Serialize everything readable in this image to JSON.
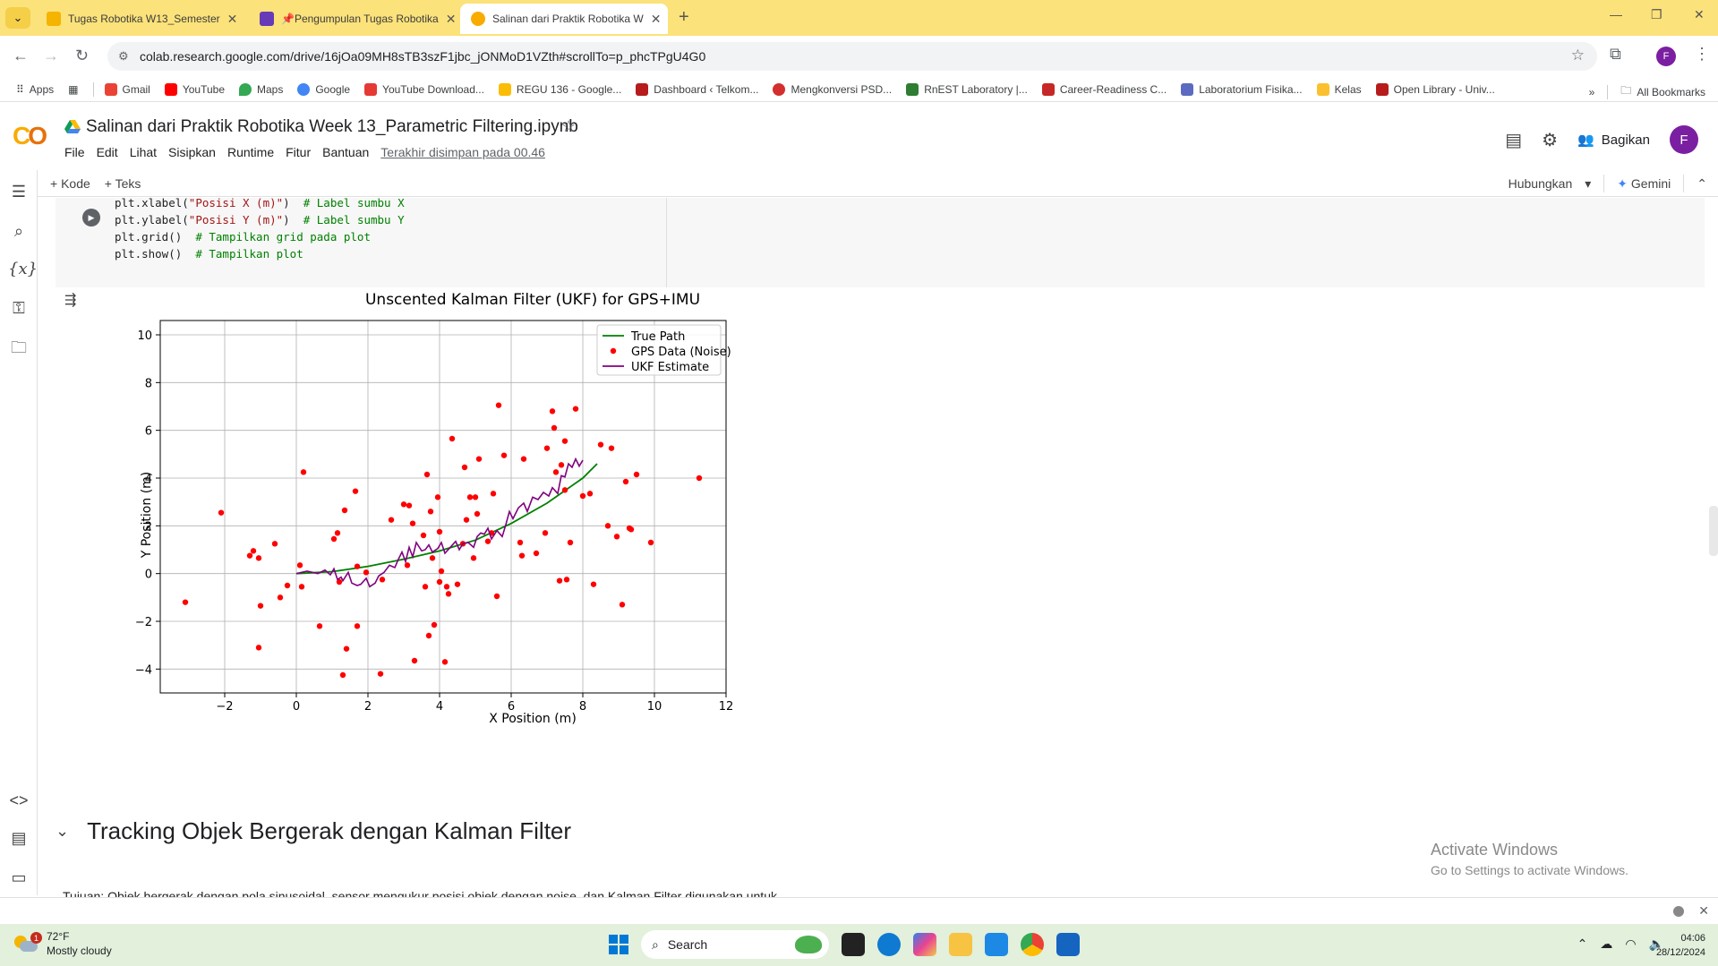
{
  "browser": {
    "tabs": [
      {
        "label": "Tugas Robotika W13_Semester",
        "color": "#f4b400"
      },
      {
        "label": "📌Pengumpulan Tugas Robotika",
        "color": "#673ab7"
      },
      {
        "label": "Salinan dari Praktik Robotika W",
        "color": "#f9ab00"
      }
    ],
    "url": "colab.research.google.com/drive/16jOa09MH8sTB3szF1jbc_jONMoD1VZth#scrollTo=p_phcTPgU4G0",
    "profile_initial": "F"
  },
  "bookmarks": [
    {
      "label": "Apps",
      "color": "#4285f4"
    },
    {
      "label": "Gmail",
      "color": "#ea4335"
    },
    {
      "label": "YouTube",
      "color": "#ff0000"
    },
    {
      "label": "Maps",
      "color": "#34a853"
    },
    {
      "label": "Google",
      "color": "#4285f4"
    },
    {
      "label": "YouTube Download...",
      "color": "#e53935"
    },
    {
      "label": "REGU 136 - Google...",
      "color": "#fbbc04"
    },
    {
      "label": "Dashboard ‹ Telkom...",
      "color": "#b71c1c"
    },
    {
      "label": "Mengkonversi PSD...",
      "color": "#d32f2f"
    },
    {
      "label": "RnEST Laboratory |...",
      "color": "#2e7d32"
    },
    {
      "label": "Career-Readiness C...",
      "color": "#c62828"
    },
    {
      "label": "Laboratorium Fisika...",
      "color": "#5c6bc0"
    },
    {
      "label": "Kelas",
      "color": "#fbc02d"
    },
    {
      "label": "Open Library - Univ...",
      "color": "#b71c1c"
    }
  ],
  "bookmarks_all": "All Bookmarks",
  "colab": {
    "title": "Salinan dari Praktik Robotika Week 13_Parametric Filtering.ipynb",
    "menu": [
      "File",
      "Edit",
      "Lihat",
      "Sisipkan",
      "Runtime",
      "Fitur",
      "Bantuan"
    ],
    "saved": "Terakhir disimpan pada 00.46",
    "share": "Bagikan",
    "avatar": "F",
    "add_code": "+ Kode",
    "add_text": "+ Teks",
    "connect": "Hubungkan",
    "gemini": "Gemini"
  },
  "code_lines": [
    {
      "pre": "plt.xlabel(",
      "str": "\"Posisi X (m)\"",
      "post": ")  ",
      "com": "# Label sumbu X"
    },
    {
      "pre": "plt.ylabel(",
      "str": "\"Posisi Y (m)\"",
      "post": ")  ",
      "com": "# Label sumbu Y"
    },
    {
      "pre": "plt.grid()  ",
      "str": "",
      "post": "",
      "com": "# Tampilkan grid pada plot"
    },
    {
      "pre": "plt.show()  ",
      "str": "",
      "post": "",
      "com": "# Tampilkan plot"
    }
  ],
  "chart_data": {
    "type": "scatter",
    "title": "Unscented Kalman Filter (UKF) for GPS+IMU",
    "xlabel": "X Position (m)",
    "ylabel": "Y Position (m)",
    "xlim": [
      -3.8,
      12
    ],
    "ylim": [
      -5,
      10.6
    ],
    "xticks": [
      -2,
      0,
      2,
      4,
      6,
      8,
      10,
      12
    ],
    "yticks": [
      -4,
      -2,
      0,
      2,
      4,
      6,
      8,
      10
    ],
    "grid": true,
    "legend_position": "top-right",
    "legend": [
      "True Path",
      "GPS Data (Noise)",
      "UKF Estimate"
    ],
    "colors": {
      "true_path": "#008000",
      "gps": "#ff0000",
      "ukf": "#800080"
    },
    "true_path": {
      "x": [
        0,
        1,
        2,
        3,
        4,
        5,
        6,
        7,
        8,
        8.4
      ],
      "y": [
        0,
        0.08,
        0.3,
        0.6,
        0.95,
        1.4,
        2.1,
        2.95,
        4.0,
        4.6
      ]
    },
    "gps": {
      "x": [
        -3.1,
        -2.1,
        -1.3,
        -1.2,
        -1.0,
        -1.05,
        -1.05,
        -0.6,
        -0.45,
        -0.25,
        0.1,
        0.15,
        0.2,
        0.65,
        1.05,
        1.15,
        1.2,
        1.3,
        1.35,
        1.4,
        1.65,
        1.7,
        1.7,
        1.95,
        2.35,
        2.4,
        2.65,
        3.0,
        3.1,
        3.15,
        3.25,
        3.3,
        3.55,
        3.6,
        3.65,
        3.7,
        3.75,
        3.8,
        3.85,
        3.95,
        4.0,
        4.0,
        4.05,
        4.15,
        4.2,
        4.25,
        4.35,
        4.5,
        4.65,
        4.7,
        4.75,
        4.85,
        4.95,
        5.0,
        5.05,
        5.1,
        5.35,
        5.45,
        5.5,
        5.6,
        5.65,
        5.8,
        6.25,
        6.3,
        6.35,
        6.7,
        6.95,
        7.0,
        7.15,
        7.2,
        7.25,
        7.35,
        7.4,
        7.5,
        7.5,
        7.55,
        7.65,
        7.8,
        8.0,
        8.2,
        8.3,
        8.5,
        8.7,
        8.8,
        8.95,
        9.1,
        9.2,
        9.3,
        9.35,
        9.5,
        9.9,
        11.25
      ],
      "y": [
        -1.2,
        2.55,
        0.75,
        0.95,
        -1.35,
        0.65,
        -3.1,
        1.25,
        -1.0,
        -0.5,
        0.35,
        -0.55,
        4.25,
        -2.2,
        1.45,
        1.7,
        -0.35,
        -4.25,
        2.65,
        -3.15,
        3.45,
        -2.2,
        0.3,
        0.05,
        -4.2,
        -0.25,
        2.25,
        2.9,
        0.35,
        2.85,
        2.1,
        -3.65,
        1.6,
        -0.55,
        4.15,
        -2.6,
        2.6,
        0.65,
        -2.15,
        3.2,
        1.75,
        -0.35,
        0.1,
        -3.7,
        -0.55,
        -0.85,
        5.65,
        -0.45,
        1.25,
        4.45,
        2.25,
        3.2,
        0.65,
        3.2,
        2.5,
        4.8,
        1.35,
        1.7,
        3.35,
        -0.95,
        7.05,
        4.95,
        1.3,
        0.75,
        4.8,
        0.85,
        1.7,
        5.25,
        6.8,
        6.1,
        4.25,
        -0.3,
        4.55,
        3.5,
        5.55,
        -0.25,
        1.3,
        6.9,
        3.25,
        3.35,
        -0.45,
        5.4,
        2.0,
        5.25,
        1.55,
        -1.3,
        3.85,
        1.9,
        1.85,
        4.15,
        1.3,
        4.0
      ]
    },
    "ukf": {
      "x": [
        0,
        0.3,
        0.6,
        0.8,
        0.95,
        1.05,
        1.15,
        1.25,
        1.3,
        1.45,
        1.55,
        1.7,
        1.8,
        1.95,
        2.05,
        2.2,
        2.3,
        2.45,
        2.6,
        2.75,
        2.85,
        2.95,
        3.05,
        3.15,
        3.25,
        3.35,
        3.5,
        3.6,
        3.7,
        3.8,
        3.95,
        4.05,
        4.15,
        4.3,
        4.45,
        4.55,
        4.65,
        4.8,
        4.95,
        5.05,
        5.15,
        5.25,
        5.35,
        5.45,
        5.6,
        5.75,
        5.85,
        5.95,
        6.05,
        6.2,
        6.35,
        6.45,
        6.6,
        6.75,
        6.9,
        7.05,
        7.15,
        7.3,
        7.4,
        7.5,
        7.6,
        7.7,
        7.8,
        7.9,
        8.0
      ],
      "y": [
        0,
        0.1,
        0.0,
        0.15,
        -0.05,
        0.2,
        -0.25,
        -0.15,
        -0.3,
        0.05,
        -0.4,
        -0.5,
        -0.45,
        -0.2,
        -0.55,
        -0.4,
        -0.1,
        0.05,
        0.35,
        0.25,
        0.6,
        0.9,
        0.5,
        1.1,
        0.7,
        1.3,
        0.95,
        1.0,
        1.2,
        0.9,
        1.05,
        1.3,
        0.85,
        1.1,
        1.35,
        1.0,
        1.25,
        1.3,
        1.1,
        1.55,
        1.7,
        1.65,
        1.9,
        1.45,
        1.8,
        1.55,
        2.05,
        2.6,
        2.3,
        2.75,
        2.95,
        2.6,
        3.2,
        3.1,
        3.4,
        3.25,
        3.6,
        3.35,
        4.1,
        4.05,
        4.6,
        4.45,
        4.8,
        4.5,
        4.75
      ]
    }
  },
  "section": {
    "title": "Tracking Objek Bergerak dengan Kalman Filter",
    "paragraph": "Tujuan: Objek bergerak dengan pola sinusoidal, sensor mengukur posisi objek dengan noise, dan Kalman Filter digunakan untuk"
  },
  "activate": {
    "line1": "Activate Windows",
    "line2": "Go to Settings to activate Windows."
  },
  "taskbar": {
    "temp": "72°F",
    "condition": "Mostly cloudy",
    "badge": "1",
    "search": "Search",
    "time": "04:06",
    "date": "28/12/2024"
  }
}
